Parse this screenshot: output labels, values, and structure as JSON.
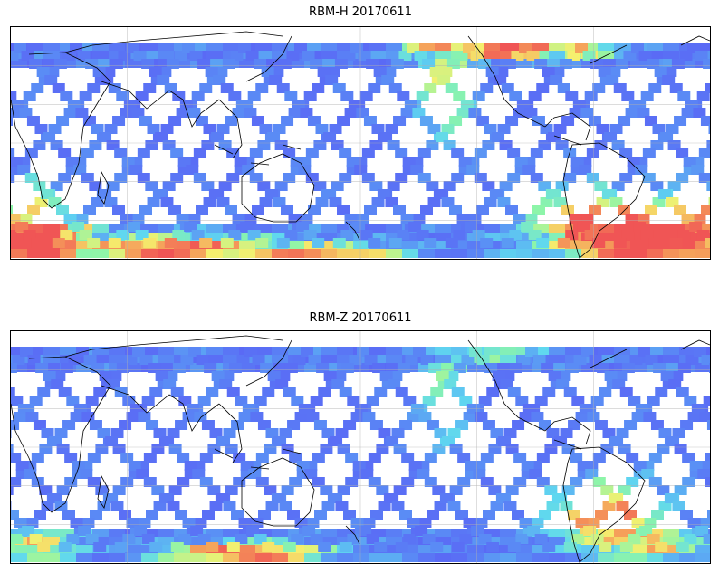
{
  "panels": [
    {
      "title": "RBM-H 20170611",
      "variable": "RBM-H",
      "date": "20170611"
    },
    {
      "title": "RBM-Z 20170611",
      "variable": "RBM-Z",
      "date": "20170611"
    }
  ],
  "map": {
    "projection": "equirectangular",
    "lat_range": [
      -65,
      65
    ],
    "gridlines": true,
    "coastlines": true,
    "colormap": "jet",
    "colors": {
      "low": "#5b5bf5",
      "mid": "#5fd8f0",
      "high": "#f05a5a",
      "border": "#000000"
    }
  }
}
